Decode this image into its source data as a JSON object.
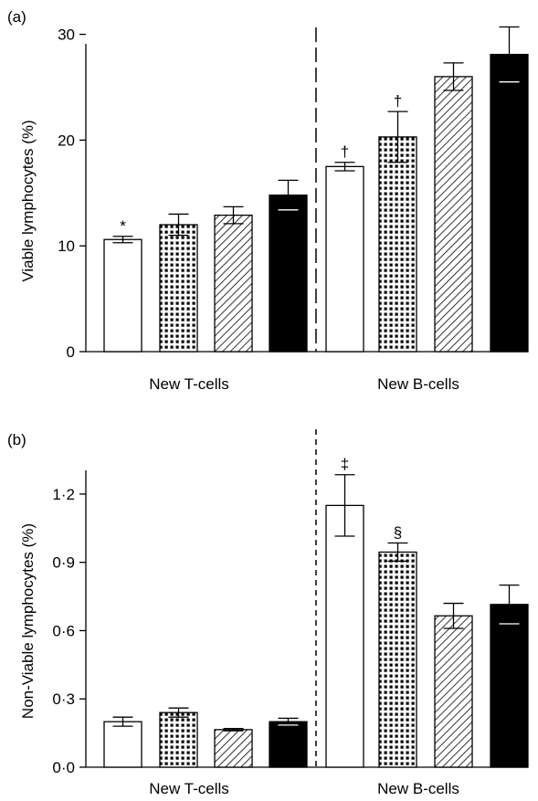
{
  "chart_data": [
    {
      "panel_label": "(a)",
      "type": "bar",
      "ylabel": "Viable lymphocytes (%)",
      "ylim": [
        0,
        30
      ],
      "yticks": [
        "0",
        "10",
        "20",
        "30"
      ],
      "ytick_values": [
        0,
        10,
        20,
        30
      ],
      "groups": [
        {
          "label": "New T-cells",
          "values": [
            10.6,
            12.0,
            12.9,
            14.8
          ],
          "errors": [
            0.3,
            1.0,
            0.8,
            1.4
          ],
          "markers": [
            "*",
            "",
            "",
            ""
          ]
        },
        {
          "label": "New B-cells",
          "values": [
            17.5,
            20.3,
            26.0,
            28.1
          ],
          "errors": [
            0.4,
            2.4,
            1.3,
            2.6
          ],
          "markers": [
            "†",
            "†",
            "",
            ""
          ]
        }
      ],
      "bar_styles": [
        "white",
        "dotted",
        "hatched",
        "black"
      ],
      "separator_style": "long-dash"
    },
    {
      "panel_label": "(b)",
      "type": "bar",
      "ylabel": "Non-Viable lymphocytes (%)",
      "ylim": [
        0,
        1.3
      ],
      "yticks": [
        "0·0",
        "0·3",
        "0·6",
        "0·9",
        "1·2"
      ],
      "ytick_values": [
        0,
        0.3,
        0.6,
        0.9,
        1.2
      ],
      "groups": [
        {
          "label": "New T-cells",
          "values": [
            0.2,
            0.24,
            0.165,
            0.2
          ],
          "errors": [
            0.02,
            0.02,
            0.005,
            0.015
          ],
          "markers": [
            "",
            "",
            "",
            ""
          ]
        },
        {
          "label": "New B-cells",
          "values": [
            1.15,
            0.945,
            0.665,
            0.715
          ],
          "errors": [
            0.135,
            0.04,
            0.055,
            0.085
          ],
          "markers": [
            "‡",
            "§",
            "",
            ""
          ]
        }
      ],
      "bar_styles": [
        "white",
        "dotted",
        "hatched",
        "black"
      ],
      "separator_style": "short-dash"
    }
  ]
}
